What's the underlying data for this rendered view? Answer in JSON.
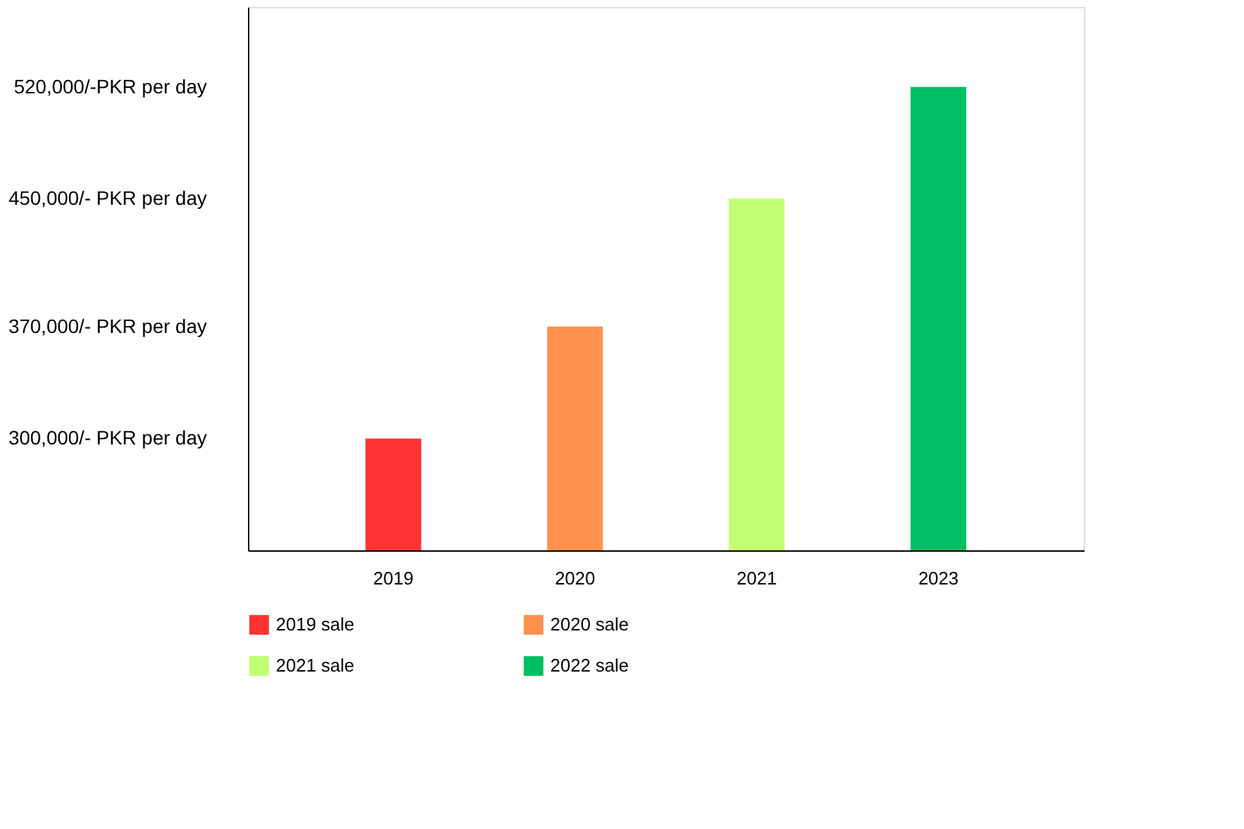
{
  "chart_data": {
    "type": "bar",
    "categories": [
      "2019",
      "2020",
      "2021",
      "2023"
    ],
    "series": [
      {
        "name": "2019 sale",
        "color": "#ff3333",
        "values": [
          300000,
          null,
          null,
          null
        ]
      },
      {
        "name": "2020 sale",
        "color": "#ff914d",
        "values": [
          null,
          370000,
          null,
          null
        ]
      },
      {
        "name": "2021 sale",
        "color": "#c1ff72",
        "values": [
          null,
          null,
          450000,
          null
        ]
      },
      {
        "name": "2022 sale",
        "color": "#00bf63",
        "values": [
          null,
          null,
          null,
          520000
        ]
      }
    ],
    "ylim": [
      230000,
      570000
    ],
    "yticks": [
      {
        "value": 300000,
        "label": "300,000/- PKR per day"
      },
      {
        "value": 370000,
        "label": "370,000/- PKR per day"
      },
      {
        "value": 450000,
        "label": "450,000/- PKR per day"
      },
      {
        "value": 520000,
        "label": "520,000/-PKR per day"
      }
    ],
    "grid": false,
    "legend": "bottom"
  }
}
